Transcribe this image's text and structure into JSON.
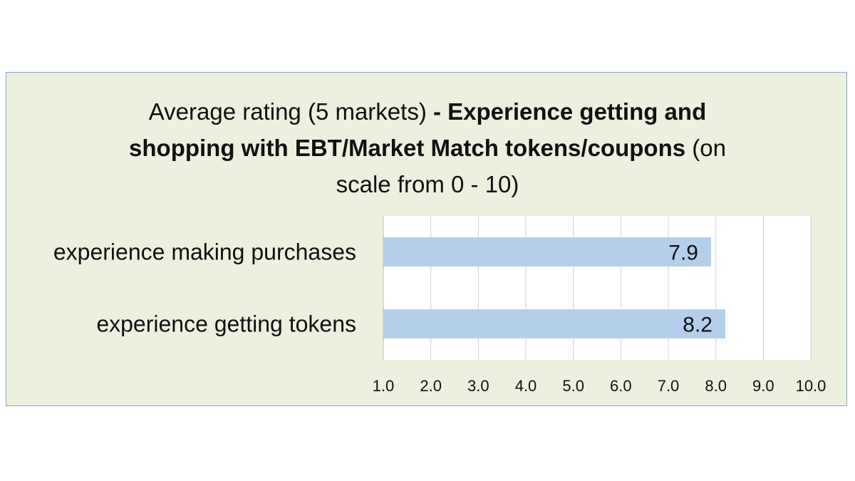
{
  "chart_data": {
    "type": "bar",
    "orientation": "horizontal",
    "title_parts": [
      {
        "text": "Average rating (5 markets) ",
        "bold": false
      },
      {
        "text": "- Experience getting and",
        "bold": true
      },
      {
        "text": "shopping with EBT/Market Match tokens/coupons",
        "bold": true
      },
      {
        "text": " (on",
        "bold": false
      },
      {
        "text": "scale from 0 - 10)",
        "bold": false
      }
    ],
    "categories": [
      "experience making purchases",
      "experience getting tokens"
    ],
    "values": [
      7.9,
      8.2
    ],
    "data_labels": [
      "7.9",
      "8.2"
    ],
    "xlim": [
      1.0,
      10.0
    ],
    "x_ticks": [
      "1.0",
      "2.0",
      "3.0",
      "4.0",
      "5.0",
      "6.0",
      "7.0",
      "8.0",
      "9.0",
      "10.0"
    ],
    "grid": true,
    "legend": false,
    "bar_color": "#b4cfec",
    "plot_background": "#ffffff",
    "chart_background": "#ebf1de",
    "border_color": "#8ea0c8"
  }
}
